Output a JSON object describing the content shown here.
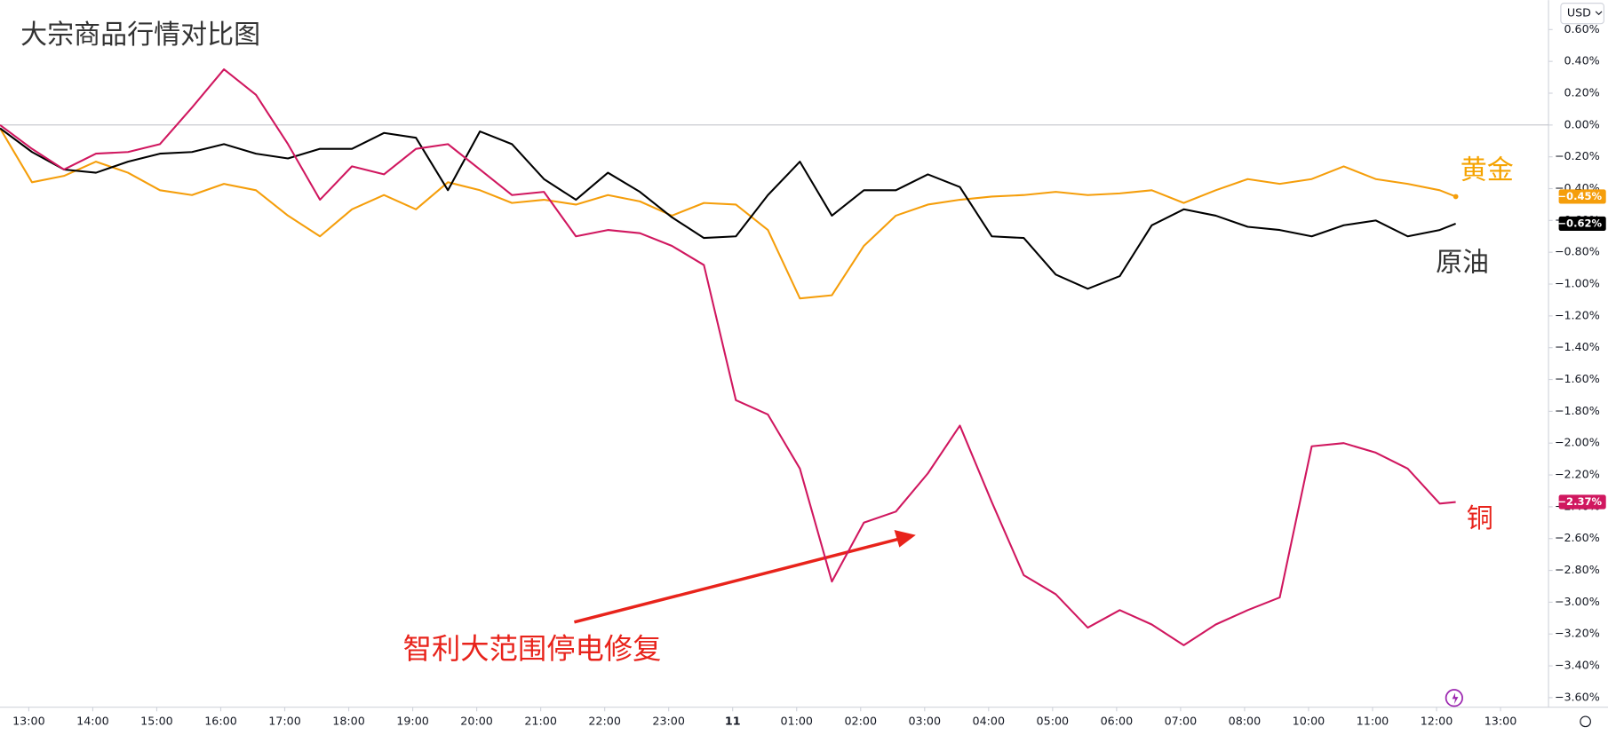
{
  "chart_data": {
    "type": "line",
    "title": "大宗商品行情对比图",
    "currency": "USD",
    "annotation": "智利大范围停电修复",
    "x": [
      -0.45,
      0.05,
      0.55,
      1.05,
      1.55,
      2.05,
      2.55,
      3.05,
      3.55,
      4.05,
      4.55,
      5.05,
      5.55,
      6.05,
      6.55,
      7.05,
      7.55,
      8.05,
      8.55,
      9.05,
      9.55,
      10.05,
      10.55,
      11.05,
      11.55,
      12.05,
      12.55,
      13.05,
      13.55,
      14.05,
      14.55,
      15.05,
      15.55,
      16.05,
      16.55,
      17.05,
      17.55,
      18.05,
      18.55,
      19.05,
      19.55,
      20.05,
      20.55,
      21.05,
      21.55,
      22.05,
      22.3
    ],
    "xlim": [
      -0.45,
      23.75
    ],
    "xticks": [
      {
        "value": 0,
        "label": "13:00"
      },
      {
        "value": 1,
        "label": "14:00"
      },
      {
        "value": 2,
        "label": "15:00"
      },
      {
        "value": 3,
        "label": "16:00"
      },
      {
        "value": 4,
        "label": "17:00"
      },
      {
        "value": 5,
        "label": "18:00"
      },
      {
        "value": 6,
        "label": "19:00"
      },
      {
        "value": 7,
        "label": "20:00"
      },
      {
        "value": 8,
        "label": "21:00"
      },
      {
        "value": 9,
        "label": "22:00"
      },
      {
        "value": 10,
        "label": "23:00"
      },
      11,
      {
        "value": 12,
        "label": "01:00"
      },
      {
        "value": 13,
        "label": "02:00"
      },
      {
        "value": 14,
        "label": "03:00"
      },
      {
        "value": 15,
        "label": "04:00"
      },
      {
        "value": 16,
        "label": "05:00"
      },
      {
        "value": 17,
        "label": "06:00"
      },
      {
        "value": 18,
        "label": "07:00"
      },
      {
        "value": 19,
        "label": "08:00"
      },
      {
        "value": 20,
        "label": "10:00"
      },
      {
        "value": 21,
        "label": "11:00"
      },
      {
        "value": 22,
        "label": "12:00"
      },
      {
        "value": 23,
        "label": "13:00"
      }
    ],
    "ylim": [
      -3.66,
      0.785
    ],
    "yticks": [
      {
        "value": 0.6,
        "label": "0.60%"
      },
      {
        "value": 0.4,
        "label": "0.40%"
      },
      {
        "value": 0.2,
        "label": "0.20%"
      },
      {
        "value": 0,
        "label": "0.00%"
      },
      {
        "value": -0.2,
        "label": "−0.20%"
      },
      {
        "value": -0.4,
        "label": "−0.40%"
      },
      {
        "value": -0.6,
        "label": "−0.60%"
      },
      {
        "value": -0.8,
        "label": "−0.80%"
      },
      {
        "value": -1.0,
        "label": "−1.00%"
      },
      {
        "value": -1.2,
        "label": "−1.20%"
      },
      {
        "value": -1.4,
        "label": "−1.40%"
      },
      {
        "value": -1.6,
        "label": "−1.60%"
      },
      {
        "value": -1.8,
        "label": "−1.80%"
      },
      {
        "value": -2.0,
        "label": "−2.00%"
      },
      {
        "value": -2.2,
        "label": "−2.20%"
      },
      {
        "value": -2.4,
        "label": "−2.40%"
      },
      {
        "value": -2.6,
        "label": "−2.60%"
      },
      {
        "value": -2.8,
        "label": "−2.80%"
      },
      {
        "value": -3.0,
        "label": "−3.00%"
      },
      {
        "value": -3.2,
        "label": "−3.20%"
      },
      {
        "value": -3.4,
        "label": "−3.40%"
      },
      {
        "value": -3.6,
        "label": "−3.60%"
      }
    ],
    "series": [
      {
        "name": "黄金",
        "color": "#f59e0b",
        "label_color": "#f5a300",
        "last_label": "−0.45%",
        "values": [
          -0.02,
          -0.36,
          -0.32,
          -0.23,
          -0.3,
          -0.41,
          -0.44,
          -0.37,
          -0.41,
          -0.57,
          -0.7,
          -0.53,
          -0.44,
          -0.53,
          -0.36,
          -0.41,
          -0.49,
          -0.47,
          -0.5,
          -0.44,
          -0.48,
          -0.57,
          -0.49,
          -0.5,
          -0.66,
          -1.09,
          -1.07,
          -0.76,
          -0.57,
          -0.5,
          -0.47,
          -0.45,
          -0.44,
          -0.42,
          -0.44,
          -0.43,
          -0.41,
          -0.49,
          -0.41,
          -0.34,
          -0.37,
          -0.34,
          -0.26,
          -0.34,
          -0.37,
          -0.41,
          -0.45
        ]
      },
      {
        "name": "原油",
        "color": "#000000",
        "label_color": "#333333",
        "last_label": "−0.62%",
        "values": [
          -0.02,
          -0.17,
          -0.28,
          -0.3,
          -0.23,
          -0.18,
          -0.17,
          -0.12,
          -0.18,
          -0.21,
          -0.15,
          -0.15,
          -0.05,
          -0.08,
          -0.41,
          -0.04,
          -0.12,
          -0.34,
          -0.47,
          -0.3,
          -0.42,
          -0.58,
          -0.71,
          -0.7,
          -0.44,
          -0.23,
          -0.57,
          -0.41,
          -0.41,
          -0.31,
          -0.39,
          -0.7,
          -0.71,
          -0.94,
          -1.03,
          -0.95,
          -0.63,
          -0.53,
          -0.57,
          -0.64,
          -0.66,
          -0.7,
          -0.63,
          -0.6,
          -0.7,
          -0.66,
          -0.62
        ]
      },
      {
        "name": "铜",
        "color": "#d0175f",
        "label_color": "#e8231b",
        "last_label": "−2.37%",
        "values": [
          0.0,
          -0.15,
          -0.28,
          -0.18,
          -0.17,
          -0.12,
          0.11,
          0.35,
          0.19,
          -0.12,
          -0.47,
          -0.26,
          -0.31,
          -0.15,
          -0.12,
          -0.28,
          -0.44,
          -0.42,
          -0.7,
          -0.66,
          -0.68,
          -0.76,
          -0.88,
          -1.73,
          -1.82,
          -2.16,
          -2.87,
          -2.5,
          -2.43,
          -2.19,
          -1.89,
          -2.37,
          -2.83,
          -2.95,
          -3.16,
          -3.05,
          -3.14,
          -3.27,
          -3.14,
          -3.05,
          -2.97,
          -2.02,
          -2.0,
          -2.06,
          -2.16,
          -2.38,
          -2.37
        ]
      }
    ]
  }
}
